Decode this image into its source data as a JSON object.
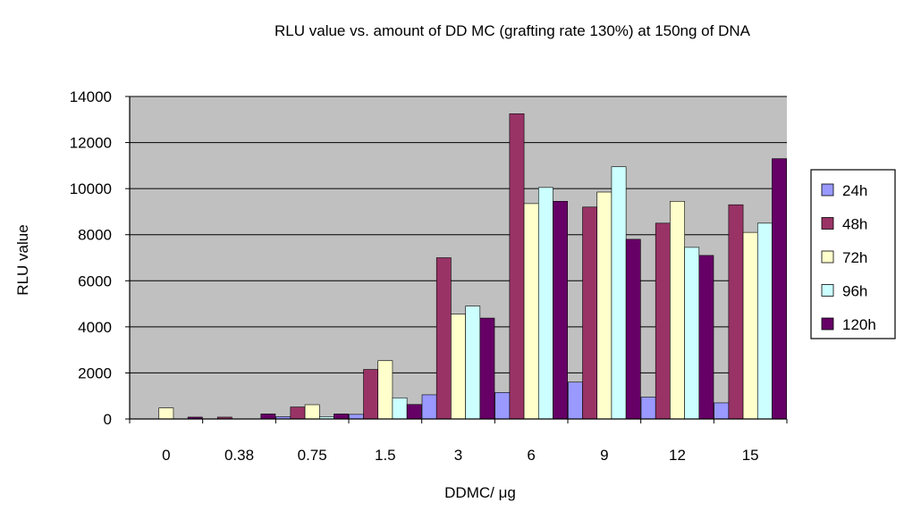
{
  "chart_data": {
    "type": "bar",
    "title": "RLU value vs. amount of DD MC (grafting rate 130%) at 150ng of DNA",
    "xlabel": "DDMC/ μg",
    "ylabel": "RLU value",
    "categories": [
      "0",
      "0.38",
      "0.75",
      "1.5",
      "3",
      "6",
      "9",
      "12",
      "15"
    ],
    "ylim": [
      0,
      14000
    ],
    "yticks": [
      "0",
      "2000",
      "4000",
      "6000",
      "8000",
      "10000",
      "12000",
      "14000"
    ],
    "grid": true,
    "legend_position": "right",
    "series": [
      {
        "name": "24h",
        "color": "#9999FF",
        "values": [
          0,
          0,
          100,
          200,
          1050,
          1150,
          1600,
          950,
          700
        ]
      },
      {
        "name": "48h",
        "color": "#993366",
        "values": [
          0,
          80,
          520,
          2150,
          7000,
          13250,
          9200,
          8500,
          9300
        ]
      },
      {
        "name": "72h",
        "color": "#FFFFCC",
        "values": [
          480,
          0,
          620,
          2530,
          4550,
          9350,
          9850,
          9450,
          8100
        ]
      },
      {
        "name": "96h",
        "color": "#CCFFFF",
        "values": [
          0,
          0,
          100,
          920,
          4900,
          10050,
          10950,
          7450,
          8500
        ]
      },
      {
        "name": "120h",
        "color": "#660066",
        "values": [
          80,
          220,
          220,
          630,
          4380,
          9450,
          7800,
          7100,
          11300
        ]
      }
    ],
    "colors": {
      "plot_background": "#C0C0C0",
      "gridline": "#000000"
    }
  }
}
